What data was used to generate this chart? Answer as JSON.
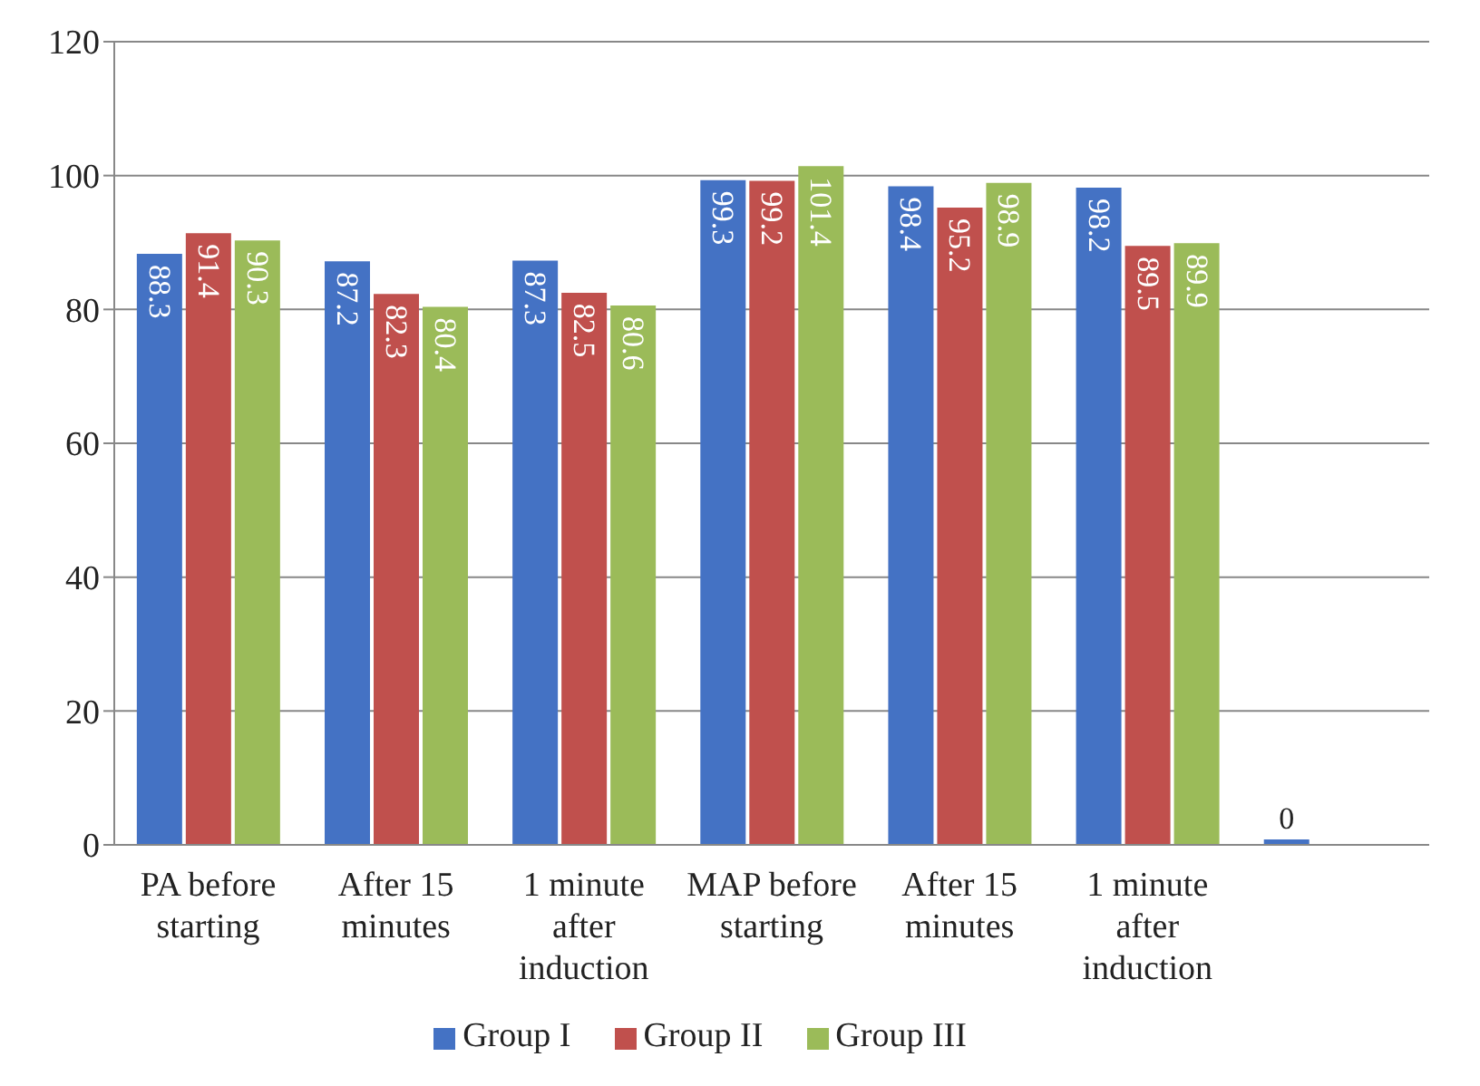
{
  "chart_data": {
    "type": "bar",
    "categories": [
      "PA before starting",
      "After 15 minutes",
      "1 minute after induction",
      "MAP before starting",
      "After 15 minutes",
      "1 minute after induction",
      null
    ],
    "series": [
      {
        "name": "Group I",
        "color": "#4472c4",
        "values": [
          88.3,
          87.2,
          87.3,
          99.3,
          98.4,
          98.2,
          0
        ]
      },
      {
        "name": "Group II",
        "color": "#c0504d",
        "values": [
          91.4,
          82.3,
          82.5,
          99.2,
          95.2,
          89.5,
          null
        ]
      },
      {
        "name": "Group III",
        "color": "#9bbb59",
        "values": [
          90.3,
          80.4,
          80.6,
          101.4,
          98.9,
          89.9,
          null
        ]
      }
    ],
    "ylim": [
      0,
      120
    ],
    "yticks": [
      0,
      20,
      40,
      60,
      80,
      100,
      120
    ],
    "grid": "y",
    "legend": "bottom",
    "data_labels": true
  }
}
